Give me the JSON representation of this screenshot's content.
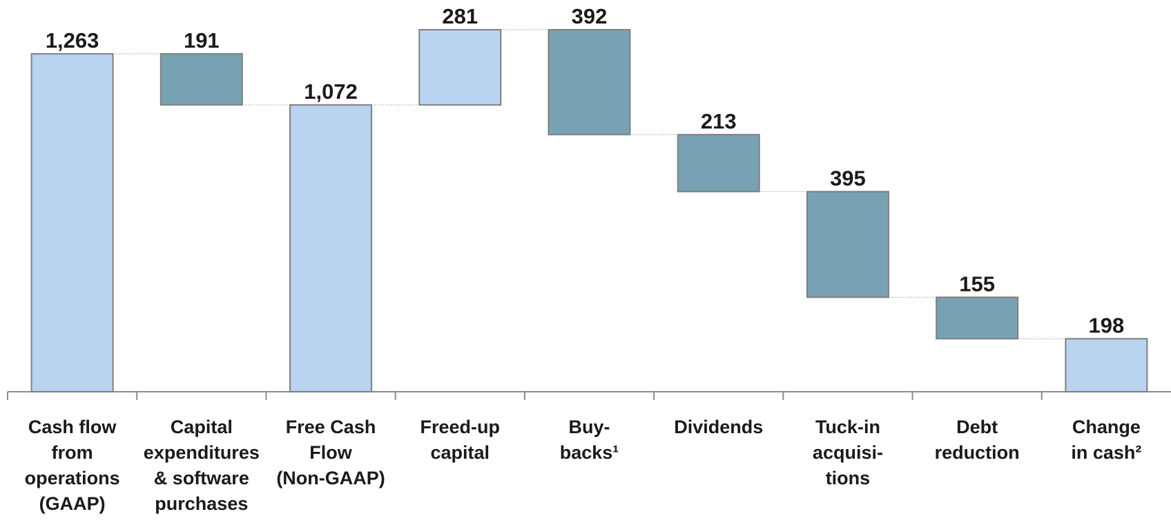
{
  "chart_data": {
    "type": "waterfall",
    "categories": [
      [
        "Cash flow",
        "from",
        "operations",
        "(GAAP)"
      ],
      [
        "Capital",
        "expenditures",
        "& software",
        "purchases"
      ],
      [
        "Free Cash",
        "Flow",
        "(Non-GAAP)"
      ],
      [
        "Freed-up",
        "capital"
      ],
      [
        "Buy-",
        "backs¹"
      ],
      [
        "Dividends"
      ],
      [
        "Tuck-in",
        "acquisi-",
        "tions"
      ],
      [
        "Debt",
        "reduction"
      ],
      [
        "Change",
        "in cash²"
      ]
    ],
    "values": [
      1263,
      191,
      1072,
      281,
      392,
      213,
      395,
      155,
      198
    ],
    "value_labels": [
      "1,263",
      "191",
      "1,072",
      "281",
      "392",
      "213",
      "395",
      "155",
      "198"
    ],
    "measures": [
      "total",
      "decrease",
      "total",
      "increase",
      "decrease",
      "decrease",
      "decrease",
      "decrease",
      "total"
    ],
    "colors": {
      "total": "#b9d3f1",
      "increase": "#b9d3f1",
      "decrease": "#78a2b3"
    }
  }
}
